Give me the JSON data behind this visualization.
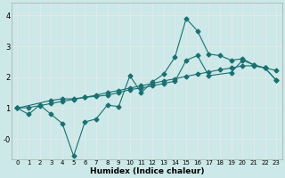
{
  "xlabel": "Humidex (Indice chaleur)",
  "xlim": [
    -0.5,
    23.5
  ],
  "ylim": [
    -0.65,
    4.4
  ],
  "xticks": [
    0,
    1,
    2,
    3,
    4,
    5,
    6,
    7,
    8,
    9,
    10,
    11,
    12,
    13,
    14,
    15,
    16,
    17,
    18,
    19,
    20,
    21,
    22,
    23
  ],
  "yticks": [
    0,
    1,
    2,
    3,
    4
  ],
  "ytick_labels": [
    "-0",
    "1",
    "2",
    "3",
    "4"
  ],
  "background_color": "#cce8e8",
  "grid_color": "#e8e8e8",
  "line_color": "#1a7070",
  "line1_x": [
    0,
    1,
    2,
    3,
    4,
    5,
    6,
    7,
    8,
    9,
    10,
    11,
    12,
    13,
    14,
    15,
    16,
    17,
    18,
    19,
    20,
    21,
    22,
    23
  ],
  "line1_y": [
    1.0,
    0.8,
    1.1,
    0.8,
    0.5,
    -0.55,
    0.55,
    0.65,
    1.1,
    1.05,
    2.05,
    1.5,
    1.85,
    2.1,
    2.65,
    3.9,
    3.5,
    2.75,
    2.7,
    2.55,
    2.6,
    2.4,
    2.3,
    1.9
  ],
  "line2_x": [
    0,
    3,
    4,
    5,
    6,
    7,
    8,
    9,
    10,
    11,
    12,
    13,
    14,
    15,
    16,
    17,
    19,
    20,
    21,
    22,
    23
  ],
  "line2_y": [
    1.0,
    1.25,
    1.3,
    1.3,
    1.35,
    1.38,
    1.42,
    1.5,
    1.6,
    1.65,
    1.72,
    1.8,
    1.87,
    2.55,
    2.7,
    2.05,
    2.15,
    2.55,
    2.4,
    2.3,
    1.9
  ],
  "line3_x": [
    0,
    1,
    2,
    3,
    4,
    5,
    6,
    7,
    8,
    9,
    10,
    11,
    12,
    13,
    14,
    15,
    16,
    17,
    18,
    19,
    20,
    21,
    22,
    23
  ],
  "line3_y": [
    1.0,
    1.02,
    1.08,
    1.15,
    1.22,
    1.28,
    1.35,
    1.42,
    1.5,
    1.57,
    1.65,
    1.72,
    1.8,
    1.88,
    1.95,
    2.03,
    2.1,
    2.17,
    2.24,
    2.3,
    2.37,
    2.37,
    2.3,
    2.22
  ],
  "marker": "D",
  "marker_size": 2.5,
  "linewidth": 0.8
}
